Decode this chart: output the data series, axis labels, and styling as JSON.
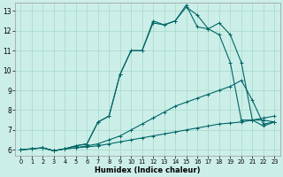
{
  "xlabel": "Humidex (Indice chaleur)",
  "background_color": "#cceee8",
  "grid_color": "#aaddcc",
  "line_color": "#006666",
  "xlim": [
    -0.5,
    23.5
  ],
  "ylim": [
    5.7,
    13.4
  ],
  "xticks": [
    0,
    1,
    2,
    3,
    4,
    5,
    6,
    7,
    8,
    9,
    10,
    11,
    12,
    13,
    14,
    15,
    16,
    17,
    18,
    19,
    20,
    21,
    22,
    23
  ],
  "yticks": [
    6,
    7,
    8,
    9,
    10,
    11,
    12,
    13
  ],
  "line1_x": [
    0,
    1,
    2,
    3,
    4,
    5,
    6,
    7,
    8,
    9,
    10,
    11,
    12,
    13,
    14,
    15,
    16,
    17,
    18,
    19,
    20,
    21,
    22,
    23
  ],
  "line1_y": [
    6.0,
    6.05,
    6.1,
    5.95,
    6.05,
    6.1,
    6.15,
    6.2,
    6.3,
    6.4,
    6.5,
    6.6,
    6.7,
    6.8,
    6.9,
    7.0,
    7.1,
    7.2,
    7.3,
    7.35,
    7.4,
    7.5,
    7.6,
    7.7
  ],
  "line2_x": [
    0,
    1,
    2,
    3,
    4,
    5,
    6,
    7,
    8,
    9,
    10,
    11,
    12,
    13,
    14,
    15,
    16,
    17,
    18,
    19,
    20,
    21,
    22,
    23
  ],
  "line2_y": [
    6.0,
    6.05,
    6.1,
    5.95,
    6.05,
    6.1,
    6.2,
    6.3,
    6.5,
    6.7,
    7.0,
    7.3,
    7.6,
    7.9,
    8.2,
    8.4,
    8.6,
    8.8,
    9.0,
    9.2,
    9.5,
    8.5,
    7.3,
    7.4
  ],
  "line3_x": [
    0,
    1,
    2,
    3,
    4,
    5,
    6,
    7,
    8,
    9,
    10,
    11,
    12,
    13,
    14,
    15,
    16,
    17,
    18,
    19,
    20,
    21,
    22,
    23
  ],
  "line3_y": [
    6.0,
    6.05,
    6.1,
    5.95,
    6.05,
    6.2,
    6.3,
    7.4,
    7.7,
    9.8,
    11.0,
    11.0,
    12.4,
    12.3,
    12.5,
    13.2,
    12.8,
    12.1,
    12.4,
    11.8,
    10.4,
    7.5,
    7.5,
    7.4
  ],
  "line4_x": [
    2,
    3,
    4,
    5,
    6,
    7,
    8,
    9,
    10,
    11,
    12,
    13,
    14,
    15,
    16,
    17,
    18,
    19,
    20,
    21,
    22,
    23
  ],
  "line4_y": [
    6.1,
    5.95,
    6.05,
    6.2,
    6.3,
    7.4,
    7.7,
    9.8,
    11.0,
    11.0,
    12.5,
    12.3,
    12.5,
    13.3,
    12.2,
    12.1,
    11.8,
    10.4,
    7.5,
    7.5,
    7.2,
    7.4
  ],
  "marker_size": 3.0,
  "line_width": 0.8
}
